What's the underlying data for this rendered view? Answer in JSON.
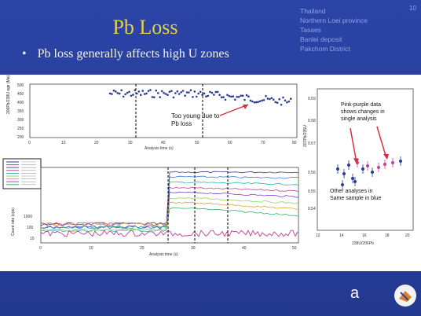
{
  "slide": {
    "title": "Pb Loss",
    "bullet": "Pb loss generally affects high U zones",
    "page_number": "10",
    "location_lines": [
      "Thailand",
      "Northern Loei province",
      "Tasaes",
      "Banlei deposit",
      "Pakchom District"
    ],
    "footer_letter": "a"
  },
  "charts": {
    "top": {
      "ylabel": "206Pb/238U age (Ma)",
      "xlabel": "Analysis time (s)",
      "y_ticks": [
        "500",
        "450",
        "400",
        "350",
        "300",
        "250",
        "200"
      ],
      "x_ticks": [
        "0",
        "10",
        "20",
        "30",
        "40",
        "50",
        "60",
        "70",
        "80"
      ],
      "annotation": "Too young due to Pb loss"
    },
    "bottom": {
      "ylabel": "Count rate (cps)",
      "xlabel": "Analysis time (s)",
      "y_ticks": [
        "1000",
        "100",
        "10"
      ],
      "x_ticks": [
        "0",
        "10",
        "20",
        "30",
        "40",
        "50"
      ]
    },
    "right": {
      "ylabel": "207Pb/235U",
      "xlabel": "238U/206Pb",
      "y_ticks": [
        "0.59",
        "0.58",
        "0.57",
        "0.56",
        "0.55",
        "0.54"
      ],
      "x_ticks": [
        "12",
        "14",
        "16",
        "18",
        "20"
      ],
      "annotation_pink": "Pink-purple data shows changes in single analysis",
      "annotation_blue": "Other analyses in Same sample in blue"
    }
  },
  "colors": {
    "background": "#2b44a6",
    "title": "#e6d24a",
    "data_blue": "#2b3b8f",
    "data_pink": "#c43c9a",
    "arrow": "#d23040"
  }
}
